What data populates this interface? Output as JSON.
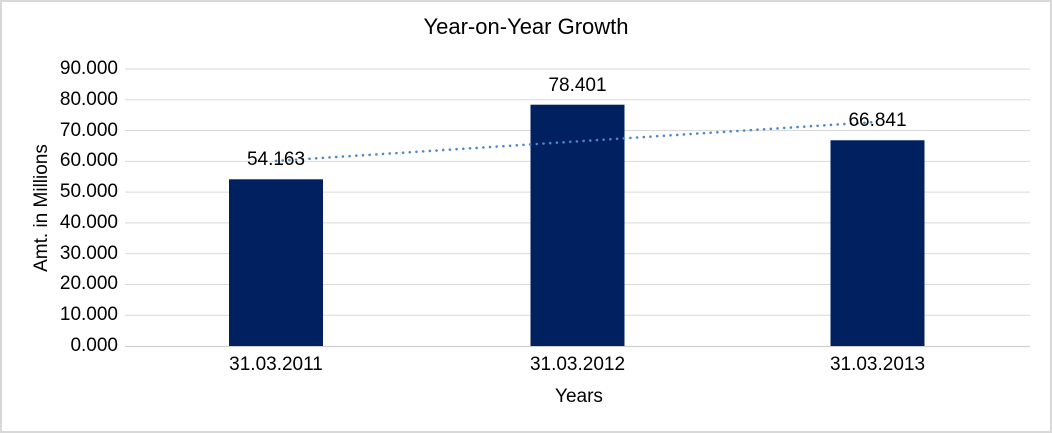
{
  "chart_data": {
    "type": "bar",
    "title": "Year-on-Year Growth",
    "categories": [
      "31.03.2011",
      "31.03.2012",
      "31.03.2013"
    ],
    "values": [
      54.163,
      78.401,
      66.841
    ],
    "data_labels": [
      "54.163",
      "78.401",
      "66.841"
    ],
    "xlabel": "Years",
    "ylabel": "Amt. in Millions",
    "ylim": [
      0,
      90
    ],
    "ytick_step": 10,
    "ytick_labels": [
      "90.000",
      "80.000",
      "70.000",
      "60.000",
      "50.000",
      "40.000",
      "30.000",
      "20.000",
      "10.000",
      "0.000"
    ],
    "grid": true,
    "legend_position": "none",
    "bar_color": "#002060",
    "trendline": {
      "type": "linear",
      "style": "dotted",
      "color": "#4E86C8",
      "start_value": 60.13,
      "end_value": 72.81
    },
    "colors": {
      "gridline": "#D9D9D9",
      "axis_line": "#CFCFCF",
      "chart_border": "#D8D8D8",
      "background": "#FFFFFF",
      "text": "#000000"
    }
  }
}
